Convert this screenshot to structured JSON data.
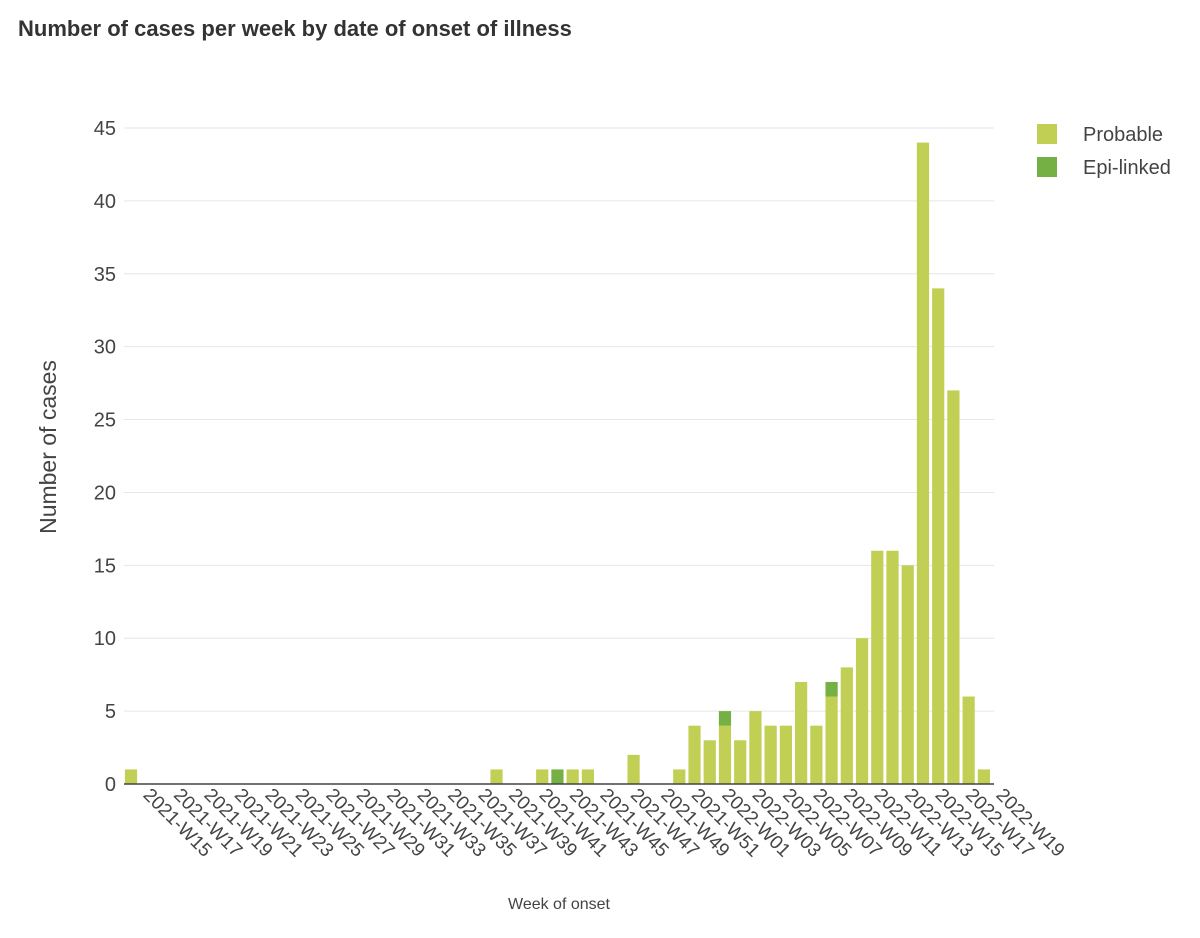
{
  "chart_data": {
    "type": "bar",
    "stacked": true,
    "title": "Number of cases per week by date of onset of illness",
    "xlabel": "Week of onset",
    "ylabel": "Number of cases",
    "ylim": [
      0,
      45
    ],
    "yticks": [
      0,
      5,
      10,
      15,
      20,
      25,
      30,
      35,
      40,
      45
    ],
    "grid": true,
    "legend_position": "top-right",
    "tick_labels": [
      "2021-W15",
      "2021-W17",
      "2021-W19",
      "2021-W21",
      "2021-W23",
      "2021-W25",
      "2021-W27",
      "2021-W29",
      "2021-W31",
      "2021-W33",
      "2021-W35",
      "2021-W37",
      "2021-W39",
      "2021-W41",
      "2021-W43",
      "2021-W45",
      "2021-W47",
      "2021-W49",
      "2021-W51",
      "2022-W01",
      "2022-W03",
      "2022-W05",
      "2022-W07",
      "2022-W09",
      "2022-W11",
      "2022-W13",
      "2022-W15",
      "2022-W17",
      "2022-W19"
    ],
    "categories": [
      "2021-W14",
      "2021-W15",
      "2021-W16",
      "2021-W17",
      "2021-W18",
      "2021-W19",
      "2021-W20",
      "2021-W21",
      "2021-W22",
      "2021-W23",
      "2021-W24",
      "2021-W25",
      "2021-W26",
      "2021-W27",
      "2021-W28",
      "2021-W29",
      "2021-W30",
      "2021-W31",
      "2021-W32",
      "2021-W33",
      "2021-W34",
      "2021-W35",
      "2021-W36",
      "2021-W37",
      "2021-W38",
      "2021-W39",
      "2021-W40",
      "2021-W41",
      "2021-W42",
      "2021-W43",
      "2021-W44",
      "2021-W45",
      "2021-W46",
      "2021-W47",
      "2021-W48",
      "2021-W49",
      "2021-W50",
      "2021-W51",
      "2021-W52",
      "2022-W01",
      "2022-W02",
      "2022-W03",
      "2022-W04",
      "2022-W05",
      "2022-W06",
      "2022-W07",
      "2022-W08",
      "2022-W09",
      "2022-W10",
      "2022-W11",
      "2022-W12",
      "2022-W13",
      "2022-W14",
      "2022-W15",
      "2022-W16",
      "2022-W17",
      "2022-W18",
      "2022-W19"
    ],
    "series": [
      {
        "name": "Probable",
        "color": "#c2cf55",
        "values": [
          1,
          0,
          0,
          0,
          0,
          0,
          0,
          0,
          0,
          0,
          0,
          0,
          0,
          0,
          0,
          0,
          0,
          0,
          0,
          0,
          0,
          0,
          0,
          0,
          1,
          0,
          0,
          1,
          0,
          1,
          1,
          0,
          0,
          2,
          0,
          0,
          1,
          4,
          3,
          4,
          3,
          5,
          4,
          4,
          7,
          4,
          6,
          8,
          10,
          16,
          16,
          15,
          44,
          34,
          27,
          6,
          1,
          0
        ]
      },
      {
        "name": "Epi-linked",
        "color": "#74b044",
        "values": [
          0,
          0,
          0,
          0,
          0,
          0,
          0,
          0,
          0,
          0,
          0,
          0,
          0,
          0,
          0,
          0,
          0,
          0,
          0,
          0,
          0,
          0,
          0,
          0,
          0,
          0,
          0,
          0,
          1,
          0,
          0,
          0,
          0,
          0,
          0,
          0,
          0,
          0,
          0,
          1,
          0,
          0,
          0,
          0,
          0,
          0,
          1,
          0,
          0,
          0,
          0,
          0,
          0,
          0,
          0,
          0,
          0,
          0
        ]
      }
    ]
  }
}
